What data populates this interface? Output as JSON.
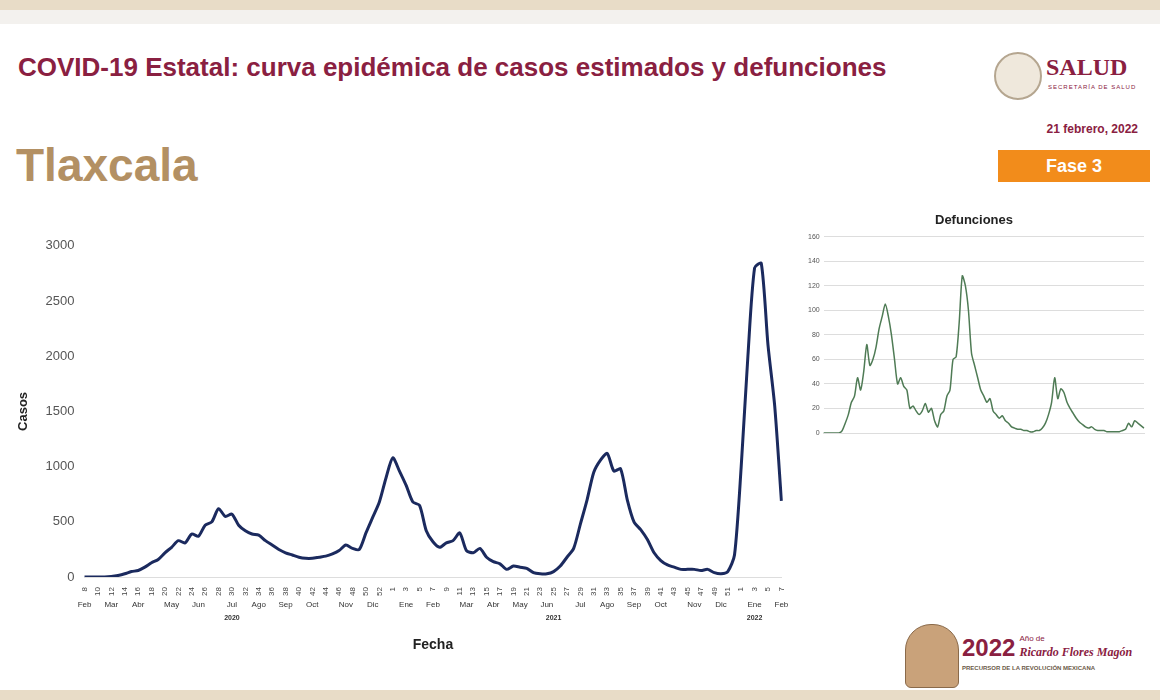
{
  "header": {
    "title": "COVID-19 Estatal: curva epidémica de casos estimados y defunciones",
    "state": "Tlaxcala",
    "logo": "SALUD",
    "logo_subtitle": "SECRETARÍA DE SALUD",
    "date": "21 febrero, 2022",
    "phase": "Fase 3"
  },
  "footer": {
    "year": "2022",
    "line1": "Año de",
    "name": "Ricardo Flores Magón",
    "tagline": "PRECURSOR DE LA REVOLUCIÓN MEXICANA"
  },
  "chart_data": [
    {
      "type": "line",
      "x_label": "Fecha",
      "y_label": "Casos",
      "color": "#1b2a5e",
      "grid": false,
      "ylim": [
        0,
        3000
      ],
      "yticks": [
        0,
        500,
        1000,
        1500,
        2000,
        2500,
        3000
      ],
      "categories": [
        "8",
        null,
        "10",
        null,
        "12",
        null,
        "14",
        null,
        "16",
        null,
        "18",
        null,
        "20",
        null,
        "22",
        null,
        "24",
        null,
        "26",
        null,
        "28",
        null,
        "30",
        null,
        "32",
        null,
        "34",
        null,
        "36",
        null,
        "38",
        null,
        "40",
        null,
        "42",
        null,
        "44",
        null,
        "46",
        null,
        "48",
        null,
        "50",
        null,
        "52",
        null,
        "1",
        null,
        "3",
        null,
        "5",
        null,
        "7",
        null,
        "9",
        null,
        "11",
        null,
        "13",
        null,
        "15",
        null,
        "17",
        null,
        "19",
        null,
        "21",
        null,
        "23",
        null,
        "25",
        null,
        "27",
        null,
        "29",
        null,
        "31",
        null,
        "33",
        null,
        "35",
        null,
        "37",
        null,
        "39",
        null,
        "41",
        null,
        "43",
        null,
        "45",
        null,
        "47",
        null,
        "49",
        null,
        "51",
        null,
        "1",
        null,
        "3",
        null,
        "5",
        null,
        "7"
      ],
      "month_labels": [
        "Feb",
        null,
        null,
        null,
        "Mar",
        null,
        null,
        null,
        "Abr",
        null,
        null,
        null,
        null,
        "May",
        null,
        null,
        null,
        "Jun",
        null,
        null,
        null,
        null,
        "Jul",
        null,
        null,
        null,
        "Ago",
        null,
        null,
        null,
        "Sep",
        null,
        null,
        null,
        "Oct",
        null,
        null,
        null,
        null,
        "Nov",
        null,
        null,
        null,
        "Dic",
        null,
        null,
        null,
        null,
        "Ene",
        null,
        null,
        null,
        "Feb",
        null,
        null,
        null,
        null,
        "Mar",
        null,
        null,
        null,
        "Abr",
        null,
        null,
        null,
        "May",
        null,
        null,
        null,
        "Jun",
        null,
        null,
        null,
        null,
        "Jul",
        null,
        null,
        null,
        "Ago",
        null,
        null,
        null,
        "Sep",
        null,
        null,
        null,
        "Oct",
        null,
        null,
        null,
        null,
        "Nov",
        null,
        null,
        null,
        "Dic",
        null,
        null,
        null,
        null,
        "Ene",
        null,
        null,
        null,
        "Feb"
      ],
      "year_labels": [
        null,
        null,
        null,
        null,
        null,
        null,
        null,
        null,
        null,
        null,
        null,
        null,
        null,
        null,
        null,
        null,
        null,
        null,
        null,
        null,
        null,
        null,
        "2020",
        null,
        null,
        null,
        null,
        null,
        null,
        null,
        null,
        null,
        null,
        null,
        null,
        null,
        null,
        null,
        null,
        null,
        null,
        null,
        null,
        null,
        null,
        null,
        null,
        null,
        null,
        null,
        null,
        null,
        null,
        null,
        null,
        null,
        null,
        null,
        null,
        null,
        null,
        null,
        null,
        null,
        null,
        null,
        null,
        null,
        null,
        null,
        "2021",
        null,
        null,
        null,
        null,
        null,
        null,
        null,
        null,
        null,
        null,
        null,
        null,
        null,
        null,
        null,
        null,
        null,
        null,
        null,
        null,
        null,
        null,
        null,
        null,
        null,
        null,
        null,
        null,
        null,
        "2022",
        null,
        null,
        null,
        null
      ],
      "values": [
        0,
        0,
        0,
        0,
        5,
        15,
        30,
        50,
        60,
        90,
        130,
        160,
        220,
        270,
        330,
        310,
        390,
        370,
        470,
        500,
        620,
        550,
        570,
        470,
        420,
        390,
        380,
        330,
        290,
        250,
        220,
        200,
        180,
        170,
        170,
        180,
        190,
        210,
        240,
        290,
        260,
        250,
        400,
        540,
        680,
        900,
        1080,
        960,
        830,
        680,
        650,
        420,
        320,
        270,
        310,
        330,
        400,
        240,
        220,
        260,
        180,
        140,
        120,
        70,
        100,
        90,
        80,
        40,
        30,
        30,
        50,
        100,
        180,
        260,
        480,
        700,
        950,
        1060,
        1120,
        960,
        980,
        700,
        500,
        430,
        340,
        220,
        150,
        110,
        90,
        70,
        70,
        70,
        60,
        70,
        40,
        30,
        50,
        200,
        1000,
        2000,
        2800,
        2840,
        2100,
        1550,
        690
      ]
    },
    {
      "type": "line",
      "title": "Defunciones",
      "color": "#4f7b55",
      "grid": true,
      "tick_labels": "y",
      "ylim": [
        0,
        160
      ],
      "yticks": [
        0,
        20,
        40,
        60,
        80,
        100,
        120,
        140,
        160
      ],
      "values": [
        0,
        0,
        0,
        0,
        0,
        0,
        2,
        8,
        15,
        25,
        30,
        45,
        35,
        50,
        72,
        55,
        60,
        70,
        85,
        95,
        105,
        95,
        80,
        60,
        40,
        45,
        38,
        35,
        20,
        22,
        18,
        15,
        18,
        24,
        17,
        20,
        10,
        5,
        15,
        18,
        30,
        35,
        60,
        62,
        90,
        128,
        120,
        100,
        65,
        55,
        45,
        35,
        30,
        25,
        28,
        18,
        15,
        12,
        14,
        10,
        8,
        5,
        4,
        3,
        3,
        2,
        2,
        1,
        1,
        2,
        2,
        4,
        8,
        15,
        25,
        45,
        28,
        36,
        33,
        25,
        20,
        16,
        12,
        9,
        7,
        5,
        4,
        5,
        3,
        2,
        2,
        2,
        1,
        1,
        1,
        1,
        1,
        2,
        3,
        8,
        5,
        10,
        8,
        6,
        4
      ]
    }
  ]
}
